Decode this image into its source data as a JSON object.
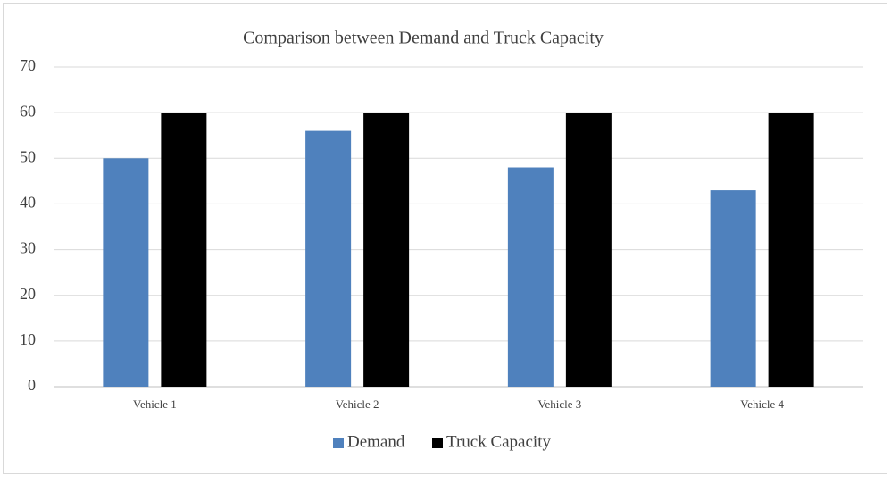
{
  "chart_data": {
    "type": "bar",
    "title": "Comparison between Demand and Truck Capacity",
    "categories": [
      "Vehicle 1",
      "Vehicle 2",
      "Vehicle 3",
      "Vehicle 4"
    ],
    "series": [
      {
        "name": "Demand",
        "color": "#4f81bd",
        "values": [
          50,
          56,
          48,
          43
        ]
      },
      {
        "name": "Truck Capacity",
        "color": "#000000",
        "values": [
          60,
          60,
          60,
          60
        ]
      }
    ],
    "ylim": [
      0,
      70
    ],
    "yticks": [
      0,
      10,
      20,
      30,
      40,
      50,
      60,
      70
    ],
    "grid": true,
    "legend": "bottom"
  }
}
